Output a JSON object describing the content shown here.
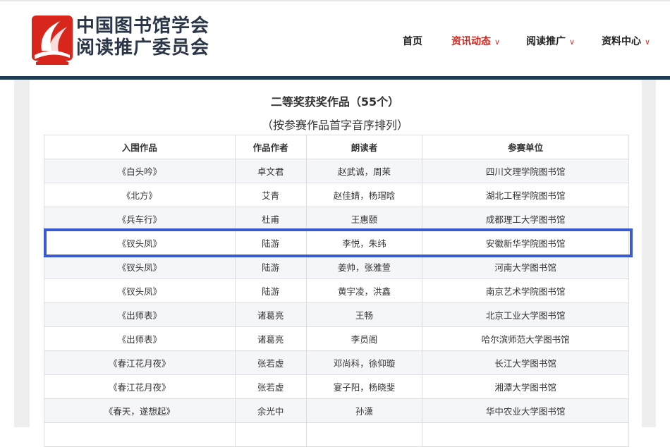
{
  "header": {
    "logo_line1": "中国图书馆学会",
    "logo_line2": "阅读推广委员会",
    "brand_color": "#d9261c",
    "nav": [
      {
        "label": "首页"
      },
      {
        "label": "资讯动态",
        "active": true
      },
      {
        "label": "阅读推广"
      },
      {
        "label": "资料中心"
      }
    ]
  },
  "main": {
    "title": "二等奖获奖作品（55个）",
    "subtitle": "（按参赛作品首字音序排列）",
    "columns": [
      "入围作品",
      "作品作者",
      "朗读者",
      "参赛单位"
    ],
    "rows": [
      [
        "《白头吟》",
        "卓文君",
        "赵武诚，周茉",
        "四川文理学院图书馆"
      ],
      [
        "《北方》",
        "艾青",
        "赵佳婧，杨瑁晗",
        "湖北工程学院图书馆"
      ],
      [
        "《兵车行》",
        "杜甫",
        "王惠颐",
        "成都理工大学图书馆"
      ],
      [
        "《钗头凤》",
        "陆游",
        "李悦，朱纬",
        "安徽新华学院图书馆"
      ],
      [
        "《钗头凤》",
        "陆游",
        "姜帅，张雅萱",
        "河南大学图书馆"
      ],
      [
        "《钗头凤》",
        "陆游",
        "黄宇凌，洪鑫",
        "南京艺术学院图书馆"
      ],
      [
        "《出师表》",
        "诸葛亮",
        "王畅",
        "北京工业大学图书馆"
      ],
      [
        "《出师表》",
        "诸葛亮",
        "李员阁",
        "哈尔滨师范大学图书馆"
      ],
      [
        "《春江花月夜》",
        "张若虚",
        "邓尚科，徐仰璇",
        "长江大学图书馆"
      ],
      [
        "《春江花月夜》",
        "张若虚",
        "宴子阳，杨晓斐",
        "湘潭大学图书馆"
      ],
      [
        "《春天，遂想起》",
        "余光中",
        "孙潇",
        "华中农业大学图书馆"
      ],
      [
        "",
        "",
        "",
        ""
      ]
    ],
    "highlight_color": "#3a5bd0"
  }
}
